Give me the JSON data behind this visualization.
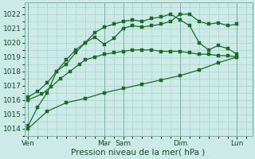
{
  "bg_color": "#cceae6",
  "grid_color": "#aad4ce",
  "line_color": "#1a6b2a",
  "ylim": [
    1013.5,
    1022.8
  ],
  "yticks": [
    1014,
    1015,
    1016,
    1017,
    1018,
    1019,
    1020,
    1021,
    1022
  ],
  "xlabel": "Pression niveau de la mer( hPa )",
  "xlabel_fontsize": 7.5,
  "tick_fontsize": 6.5,
  "xtick_labels": [
    "Ven",
    "Mar",
    "Sam",
    "Dim",
    "Lun"
  ],
  "xtick_positions": [
    0,
    4.0,
    5.0,
    8.0,
    11.0
  ],
  "xlim": [
    -0.2,
    11.8
  ],
  "line1_x": [
    0,
    1,
    2,
    3,
    4,
    5,
    6,
    7,
    8,
    9,
    10,
    11
  ],
  "line1_y": [
    1014.0,
    1015.2,
    1015.8,
    1016.1,
    1016.5,
    1016.8,
    1017.1,
    1017.4,
    1017.7,
    1018.1,
    1018.6,
    1019.0
  ],
  "line2_x": [
    0,
    0.7,
    1.2,
    1.7,
    2.2,
    2.7,
    3.0,
    3.5,
    4.0,
    4.5,
    5.0,
    5.5,
    6.0,
    6.5,
    7.0,
    7.5,
    8.0,
    8.5,
    9.0,
    9.5,
    10.0,
    10.5,
    11.0
  ],
  "line2_y": [
    1016.0,
    1016.4,
    1016.9,
    1017.5,
    1018.0,
    1018.5,
    1018.8,
    1019.0,
    1019.2,
    1019.3,
    1019.4,
    1019.5,
    1019.5,
    1019.5,
    1019.4,
    1019.4,
    1019.4,
    1019.3,
    1019.2,
    1019.2,
    1019.1,
    1019.1,
    1019.0
  ],
  "line3_x": [
    0,
    0.5,
    1.0,
    1.5,
    2.0,
    2.5,
    3.0,
    3.5,
    4.0,
    4.5,
    5.0,
    5.5,
    6.0,
    6.5,
    7.0,
    7.5,
    8.0,
    8.5,
    9.0,
    9.5,
    10.0,
    10.5,
    11.0
  ],
  "line3_y": [
    1016.2,
    1016.6,
    1017.2,
    1018.0,
    1018.8,
    1019.5,
    1020.0,
    1020.4,
    1019.9,
    1020.3,
    1021.0,
    1021.2,
    1021.1,
    1021.2,
    1021.3,
    1021.5,
    1022.0,
    1022.0,
    1021.5,
    1021.3,
    1021.4,
    1021.2,
    1021.3
  ],
  "line4_x": [
    0,
    0.5,
    1.0,
    1.5,
    2.0,
    2.5,
    3.0,
    3.5,
    4.0,
    4.5,
    5.0,
    5.5,
    6.0,
    6.5,
    7.0,
    7.5,
    8.0,
    8.5,
    9.0,
    9.5,
    10.0,
    10.5,
    11.0
  ],
  "line4_y": [
    1014.2,
    1015.5,
    1016.5,
    1018.0,
    1018.5,
    1019.3,
    1020.0,
    1020.7,
    1021.1,
    1021.3,
    1021.5,
    1021.6,
    1021.5,
    1021.7,
    1021.8,
    1022.0,
    1021.6,
    1021.2,
    1020.0,
    1019.5,
    1019.8,
    1019.6,
    1019.2
  ]
}
